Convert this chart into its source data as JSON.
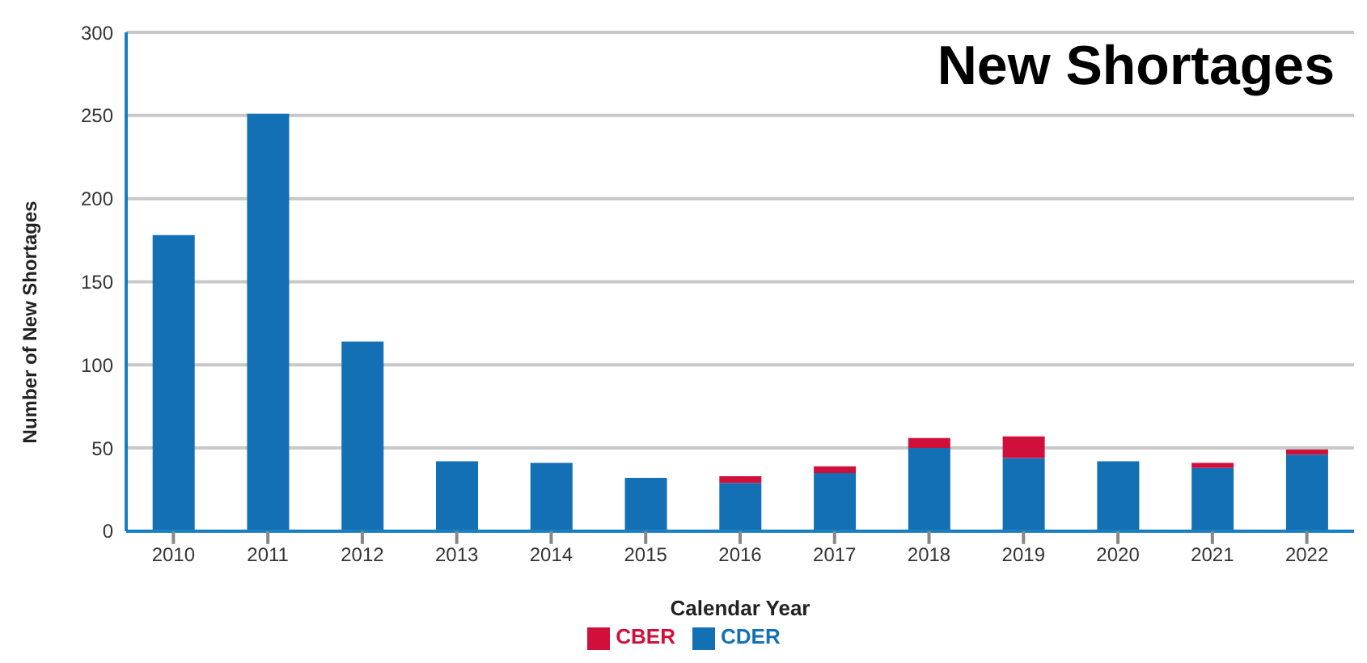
{
  "chart_data": {
    "type": "bar",
    "title": "New Shortages",
    "xlabel": "Calendar Year",
    "ylabel": "Number of New Shortages",
    "categories": [
      "2010",
      "2011",
      "2012",
      "2013",
      "2014",
      "2015",
      "2016",
      "2017",
      "2018",
      "2019",
      "2020",
      "2021",
      "2022"
    ],
    "stacked": true,
    "series": [
      {
        "name": "CDER",
        "color": "#1470b5",
        "values": [
          178,
          251,
          114,
          42,
          41,
          32,
          29,
          35,
          50,
          44,
          42,
          38,
          46
        ]
      },
      {
        "name": "CBER",
        "color": "#d0103a",
        "values": [
          0,
          0,
          0,
          0,
          0,
          0,
          4,
          4,
          6,
          13,
          0,
          3,
          3
        ]
      }
    ],
    "ylim": [
      0,
      300
    ],
    "yticks": [
      0,
      50,
      100,
      150,
      200,
      250,
      300
    ],
    "grid": "y",
    "legend": "bottom"
  }
}
